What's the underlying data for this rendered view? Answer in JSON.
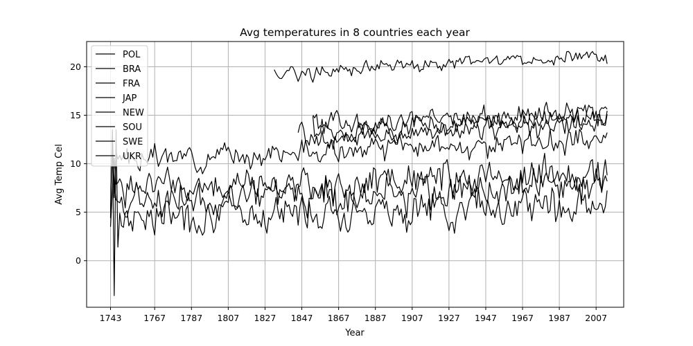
{
  "chart_data": {
    "type": "line",
    "title": "Avg temperatures in 8 countries each year",
    "xlabel": "Year",
    "ylabel": "Avg Temp Cel",
    "xlim": [
      1730,
      2022
    ],
    "ylim": [
      -4.8,
      22.6
    ],
    "xticks": [
      1743,
      1767,
      1787,
      1807,
      1827,
      1847,
      1867,
      1887,
      1907,
      1927,
      1947,
      1967,
      1987,
      2007
    ],
    "yticks": [
      0,
      5,
      10,
      15,
      20
    ],
    "grid": true,
    "legend_position": "top-left",
    "line_color": "#000000",
    "series": [
      {
        "name": "POL",
        "start": 1743,
        "end": 2013,
        "base": 7.8,
        "slope": 0.005,
        "amp": 0.9,
        "seed": 1,
        "anchors": [
          [
            1743,
            3.5
          ],
          [
            1744,
            7.3
          ],
          [
            1745,
            10.6
          ]
        ]
      },
      {
        "name": "BRA",
        "start": 1832,
        "end": 2013,
        "base": 19.5,
        "slope": 0.0105,
        "amp": 0.35,
        "seed": 2,
        "anchors": [
          [
            1832,
            19.7
          ],
          [
            1833,
            19.3
          ],
          [
            1834,
            19.0
          ],
          [
            1835,
            18.8
          ],
          [
            1840,
            19.6
          ],
          [
            2012,
            21.2
          ],
          [
            2013,
            20.3
          ]
        ]
      },
      {
        "name": "FRA",
        "start": 1743,
        "end": 2013,
        "base": 11.2,
        "slope": 0.0075,
        "amp": 0.55,
        "seed": 3,
        "anchors": [
          [
            1743,
            5.0
          ],
          [
            1744,
            13.5
          ],
          [
            1745,
            6.5
          ],
          [
            1746,
            11.2
          ]
        ]
      },
      {
        "name": "JAP",
        "start": 1845,
        "end": 2013,
        "base": 12.5,
        "slope": 0.0105,
        "amp": 0.5,
        "seed": 4,
        "anchors": [
          [
            1845,
            13.2
          ],
          [
            1846,
            14.0
          ],
          [
            1847,
            14.3
          ],
          [
            1848,
            13.6
          ]
        ]
      },
      {
        "name": "NEW",
        "start": 1853,
        "end": 2013,
        "base": 13.9,
        "slope": 0.0075,
        "amp": 0.55,
        "seed": 5,
        "anchors": [
          [
            1853,
            15.0
          ],
          [
            1855,
            15.1
          ]
        ]
      },
      {
        "name": "SOU",
        "start": 1853,
        "end": 2013,
        "base": 13.2,
        "slope": 0.012,
        "amp": 0.55,
        "seed": 6,
        "anchors": [
          [
            1853,
            14.9
          ]
        ]
      },
      {
        "name": "SWE",
        "start": 1743,
        "end": 2013,
        "base": 5.1,
        "slope": 0.0045,
        "amp": 0.9,
        "seed": 7,
        "anchors": [
          [
            1743,
            4.4
          ],
          [
            1744,
            13.3
          ],
          [
            1745,
            -3.6
          ],
          [
            1746,
            13.5
          ],
          [
            1747,
            1.4
          ],
          [
            1748,
            4.9
          ]
        ]
      },
      {
        "name": "UKR",
        "start": 1743,
        "end": 2013,
        "base": 6.6,
        "slope": 0.0075,
        "amp": 0.85,
        "seed": 8,
        "anchors": [
          [
            1743,
            5.3
          ],
          [
            1744,
            12.0
          ],
          [
            1745,
            8.0
          ]
        ]
      }
    ]
  }
}
